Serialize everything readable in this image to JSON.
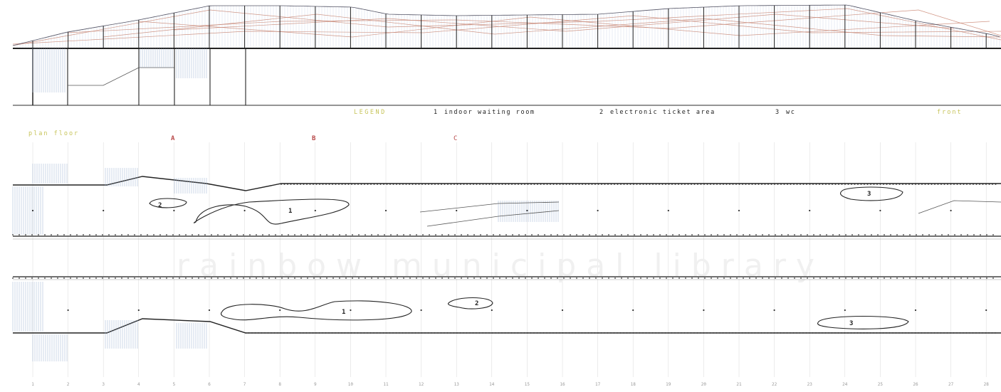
{
  "legend": {
    "title": "LEGEND",
    "items": [
      {
        "number": "1",
        "label": "indoor waiting room"
      },
      {
        "number": "2",
        "label": "electronic ticket area"
      },
      {
        "number": "3",
        "label": "wc"
      }
    ]
  },
  "labels": {
    "plan_floor": "plan floor",
    "front": "front"
  },
  "section_markers": [
    "A",
    "B",
    "C"
  ],
  "room_tags": {
    "plan1": [
      "1",
      "2",
      "3"
    ],
    "plan2": [
      "1",
      "2",
      "3"
    ]
  },
  "grid_numbers": [
    "1",
    "2",
    "3",
    "4",
    "5",
    "6",
    "7",
    "8",
    "9",
    "10",
    "11",
    "12",
    "13",
    "14",
    "15",
    "16",
    "17",
    "18",
    "19",
    "20",
    "21",
    "22",
    "23",
    "24",
    "25",
    "26",
    "27",
    "28"
  ],
  "watermark": "rainbow municipal library",
  "colors": {
    "legend_accent": "#c7c45a",
    "section_marker": "#b84a4a",
    "roof_lines": "#c9836f",
    "hatch": "#9ab0d0",
    "structure": "#222222",
    "grid_line": "#d8d8d8"
  }
}
